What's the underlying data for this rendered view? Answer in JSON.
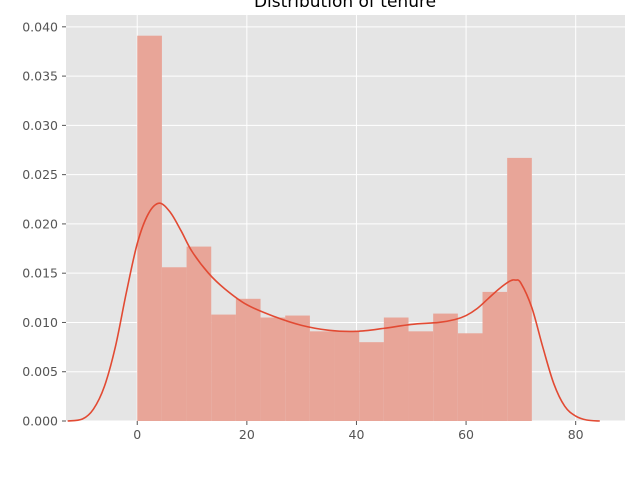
{
  "chart_data": {
    "type": "bar",
    "title": "Distribution of tenure",
    "xlabel": "",
    "ylabel": "",
    "xlim": [
      -13,
      89
    ],
    "ylim": [
      0,
      0.0412
    ],
    "xticks": [
      0,
      20,
      40,
      60,
      80
    ],
    "yticks": [
      0.0,
      0.005,
      0.01,
      0.015,
      0.02,
      0.025,
      0.03,
      0.035,
      0.04
    ],
    "xtick_labels": [
      "0",
      "20",
      "40",
      "60",
      "80"
    ],
    "ytick_labels": [
      "0.000",
      "0.005",
      "0.010",
      "0.015",
      "0.020",
      "0.025",
      "0.030",
      "0.035",
      "0.040"
    ],
    "grid": true,
    "histogram": {
      "bin_edges": [
        0,
        4.5,
        9,
        13.5,
        18,
        22.5,
        27,
        31.5,
        36,
        40.5,
        45,
        49.5,
        54,
        58.5,
        63,
        67.5,
        72
      ],
      "densities": [
        0.0391,
        0.0156,
        0.0177,
        0.0108,
        0.0124,
        0.0105,
        0.0107,
        0.0091,
        0.0091,
        0.008,
        0.0105,
        0.0091,
        0.0109,
        0.0089,
        0.0131,
        0.0267
      ]
    },
    "kde": {
      "x": [
        -12.7,
        -10,
        -8,
        -6,
        -4,
        -2,
        0,
        2,
        4,
        6,
        8,
        10,
        13,
        16,
        20,
        25,
        30,
        35,
        40,
        45,
        50,
        55,
        58,
        60,
        62,
        64,
        66,
        68,
        69,
        70,
        72,
        74,
        76,
        78,
        80,
        82,
        84.4
      ],
      "y": [
        0.0,
        0.0002,
        0.0012,
        0.0035,
        0.0075,
        0.013,
        0.018,
        0.021,
        0.0221,
        0.0212,
        0.0193,
        0.0172,
        0.015,
        0.0134,
        0.0118,
        0.0106,
        0.0097,
        0.0092,
        0.0091,
        0.0094,
        0.0098,
        0.01,
        0.0103,
        0.0107,
        0.0114,
        0.0124,
        0.0134,
        0.0142,
        0.0143,
        0.014,
        0.0115,
        0.0075,
        0.0038,
        0.0015,
        0.0005,
        0.0001,
        0.0
      ]
    },
    "colors": {
      "background": "#e5e5e5",
      "grid": "#ffffff",
      "bars": "#e8a598",
      "kde_line": "#e24a33",
      "tick_mark": "#555555"
    }
  }
}
